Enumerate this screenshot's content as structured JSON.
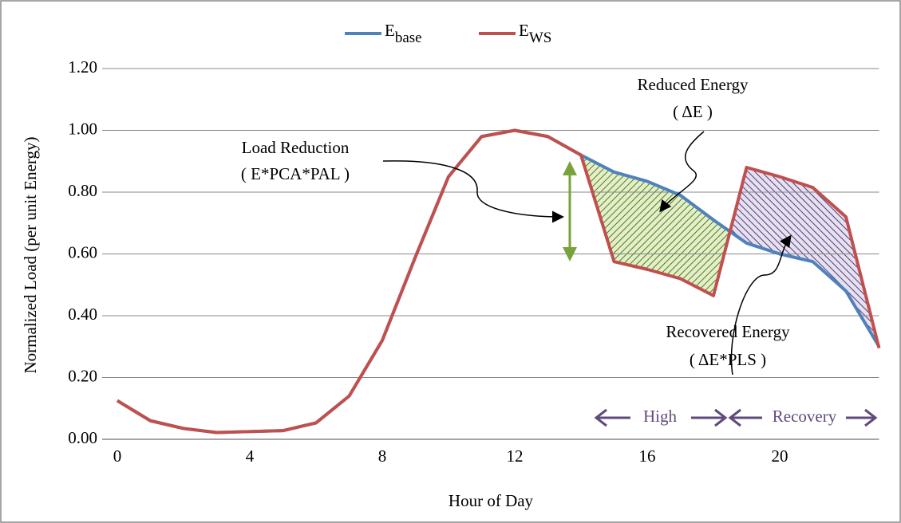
{
  "chart_data": {
    "type": "line",
    "x": [
      0,
      1,
      2,
      3,
      4,
      5,
      6,
      7,
      8,
      9,
      10,
      11,
      12,
      13,
      14,
      15,
      16,
      17,
      18,
      19,
      20,
      21,
      22,
      23
    ],
    "series": [
      {
        "name": "E",
        "name_subscript": "base",
        "color": "#4f81bd",
        "values": [
          0.125,
          0.06,
          0.035,
          0.022,
          0.025,
          0.028,
          0.053,
          0.14,
          0.32,
          0.59,
          0.85,
          0.98,
          1.0,
          0.98,
          0.92,
          0.865,
          0.835,
          0.79,
          0.71,
          0.635,
          0.6,
          0.575,
          0.48,
          0.3
        ]
      },
      {
        "name": "E",
        "name_subscript": "WS",
        "color": "#c0504d",
        "values": [
          0.125,
          0.06,
          0.035,
          0.022,
          0.025,
          0.028,
          0.053,
          0.14,
          0.32,
          0.59,
          0.85,
          0.98,
          1.0,
          0.98,
          0.92,
          0.575,
          0.55,
          0.52,
          0.465,
          0.88,
          0.85,
          0.815,
          0.72,
          0.295
        ]
      }
    ],
    "xlim": [
      0,
      23
    ],
    "xticks": [
      0,
      4,
      8,
      12,
      16,
      20
    ],
    "ylim": [
      0,
      1.2
    ],
    "yticks": [
      {
        "value": 0,
        "label": "0.00"
      },
      {
        "value": 0.2,
        "label": "0.20"
      },
      {
        "value": 0.4,
        "label": "0.40"
      },
      {
        "value": 0.6,
        "label": "0.60"
      },
      {
        "value": 0.8,
        "label": "0.80"
      },
      {
        "value": 1.0,
        "label": "1.00"
      },
      {
        "value": 1.2,
        "label": "1.20"
      }
    ],
    "grid": true,
    "xlabel": "Hour of Day",
    "ylabel": "Normalized Load (per unit Energy)",
    "annotations": {
      "load_reduction": [
        "Load Reduction",
        "( E*PCA*PAL )"
      ],
      "reduced_energy": [
        "Reduced Energy",
        "( ΔE )"
      ],
      "recovered_energy": [
        "Recovered Energy",
        "( ΔE*PLS )"
      ],
      "high": "High",
      "recovery": "Recovery"
    }
  }
}
